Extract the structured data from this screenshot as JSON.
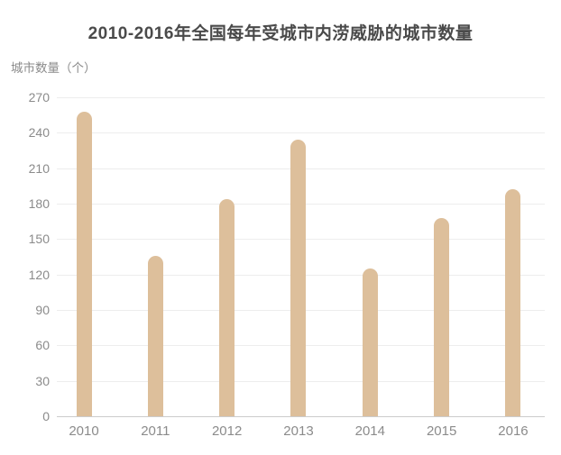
{
  "title": "2010-2016年全国每年受城市内涝威胁的城市数量",
  "y_axis_unit_label": "城市数量（个）",
  "colors": {
    "bar": "#ddbf9b",
    "title_text": "#4a4a4a",
    "axis_label_text": "#8b8b8b",
    "gridline": "#ededed",
    "axis_line": "#cccccc",
    "background": "#ffffff"
  },
  "chart_data": {
    "type": "bar",
    "title": "2010-2016年全国每年受城市内涝威胁的城市数量",
    "categories": [
      "2010",
      "2011",
      "2012",
      "2013",
      "2014",
      "2015",
      "2016"
    ],
    "values": [
      258,
      136,
      184,
      234,
      125,
      168,
      192
    ],
    "xlabel": "",
    "ylabel": "城市数量（个）",
    "ylim": [
      0,
      270
    ],
    "yticks": [
      0,
      30,
      60,
      90,
      120,
      150,
      180,
      210,
      240,
      270
    ],
    "grid": true,
    "legend_position": "none"
  }
}
